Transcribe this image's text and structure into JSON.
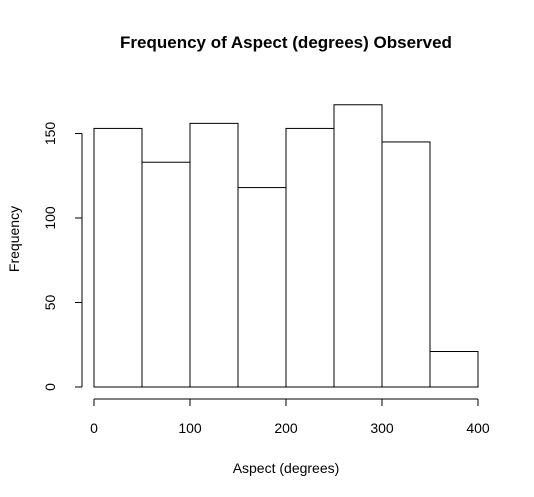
{
  "chart_data": {
    "type": "bar",
    "title": "Frequency of Aspect (degrees) Observed",
    "xlabel": "Aspect (degrees)",
    "ylabel": "Frequency",
    "bins": [
      {
        "start": 0,
        "end": 50,
        "count": 153
      },
      {
        "start": 50,
        "end": 100,
        "count": 133
      },
      {
        "start": 100,
        "end": 150,
        "count": 156
      },
      {
        "start": 150,
        "end": 200,
        "count": 118
      },
      {
        "start": 200,
        "end": 250,
        "count": 153
      },
      {
        "start": 250,
        "end": 300,
        "count": 167
      },
      {
        "start": 300,
        "end": 350,
        "count": 145
      },
      {
        "start": 350,
        "end": 400,
        "count": 21
      }
    ],
    "xlim": [
      0,
      400
    ],
    "ylim": [
      0,
      167
    ],
    "xticks": [
      0,
      100,
      200,
      300,
      400
    ],
    "yticks": [
      0,
      50,
      100,
      150
    ],
    "grid": false,
    "bar_fill": "#ffffff",
    "bar_stroke": "#000000"
  }
}
